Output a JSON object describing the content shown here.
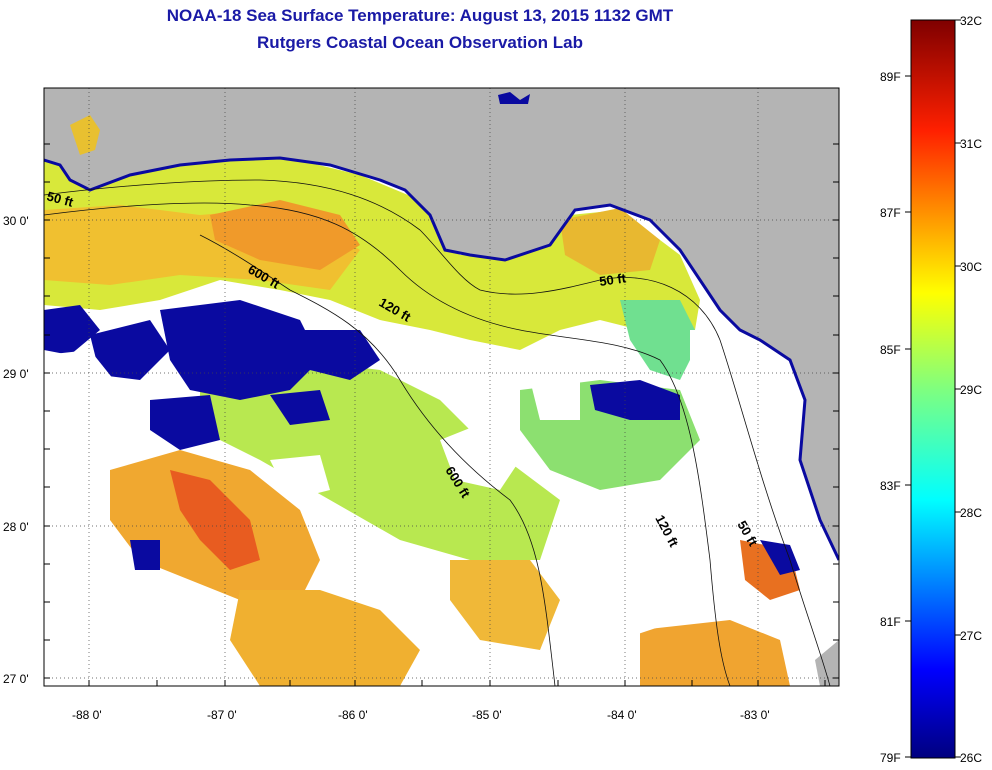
{
  "title": {
    "line1": "NOAA-18 Sea Surface Temperature:  August 13, 2015 1132 GMT",
    "line2": "Rutgers Coastal Ocean Observation Lab"
  },
  "map": {
    "lat_labels": [
      "30 0'",
      "29 0'",
      "28 0'",
      "27 0'"
    ],
    "lon_labels": [
      "-88 0'",
      "-87 0'",
      "-86 0'",
      "-85 0'",
      "-84 0'",
      "-83 0'"
    ],
    "depth_labels": {
      "d50_west": "50 ft",
      "d600_north": "600 ft",
      "d120_north": "120 ft",
      "d50_east": "50 ft",
      "d600_south": "600 ft",
      "d120_south": "120 ft",
      "d50_south": "50 ft"
    }
  },
  "colorbar": {
    "celsius": [
      "32C",
      "31C",
      "30C",
      "29C",
      "28C",
      "27C",
      "26C"
    ],
    "fahrenheit": [
      "89F",
      "87F",
      "85F",
      "83F",
      "81F",
      "79F"
    ]
  },
  "colors": {
    "land": "#b4b4b4",
    "no_data": "#ffffff",
    "title": "#1a1aa6"
  }
}
